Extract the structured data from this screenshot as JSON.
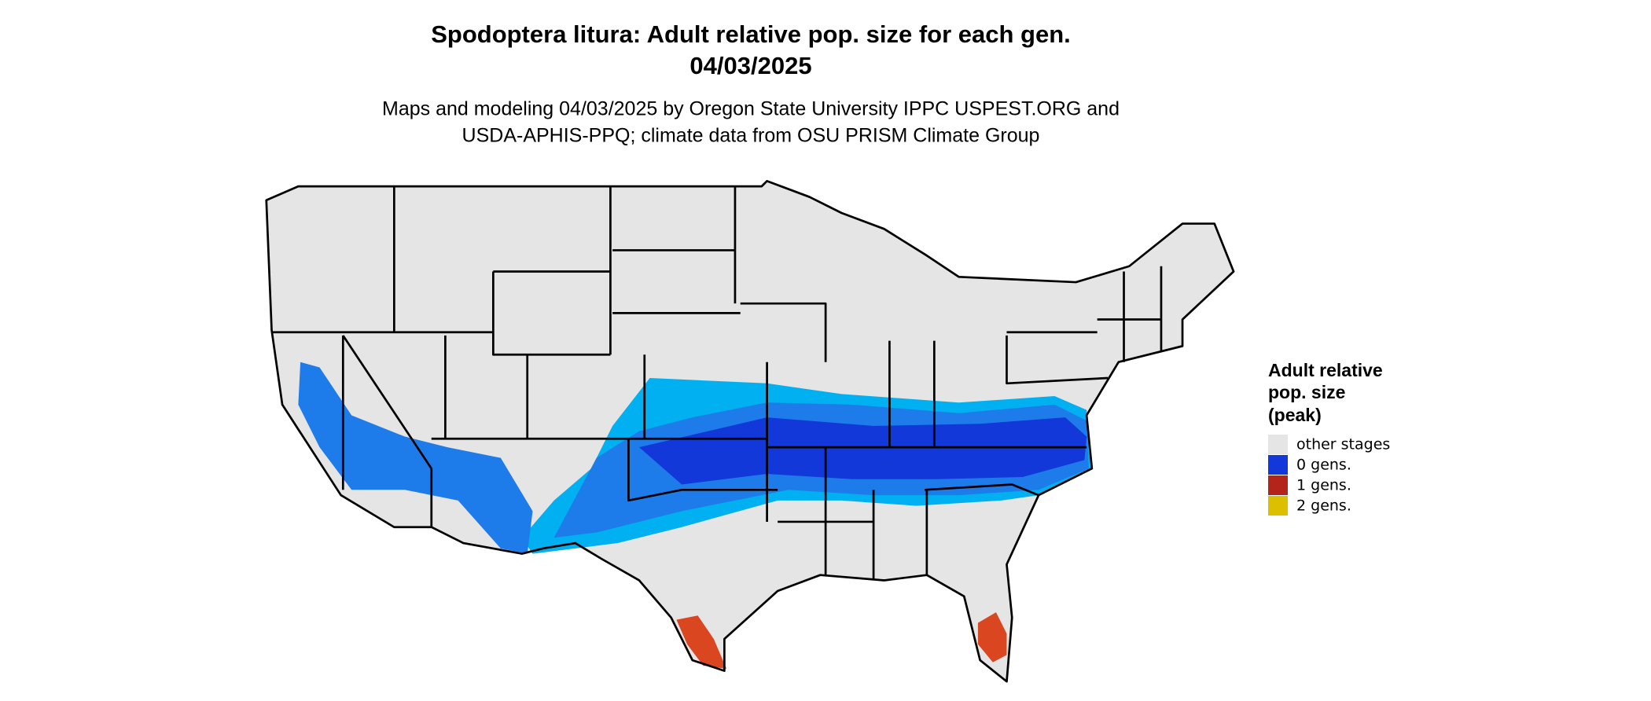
{
  "title": "Spodoptera litura: Adult relative pop. size for each gen.",
  "date": "04/03/2025",
  "subtitle": [
    "Maps and modeling 04/03/2025 by Oregon State University IPPC USPEST.ORG and",
    "USDA-APHIS-PPQ; climate data from OSU PRISM Climate Group"
  ],
  "legend": {
    "title": [
      "Adult relative",
      "pop. size",
      "(peak)"
    ],
    "items": [
      {
        "label": "other stages",
        "color": "#e5e5e5"
      },
      {
        "label": "0 gens.",
        "color": "#1238d9"
      },
      {
        "label": "1 gens.",
        "color": "#b5241a"
      },
      {
        "label": "2 gens.",
        "color": "#dcc000"
      }
    ]
  }
}
